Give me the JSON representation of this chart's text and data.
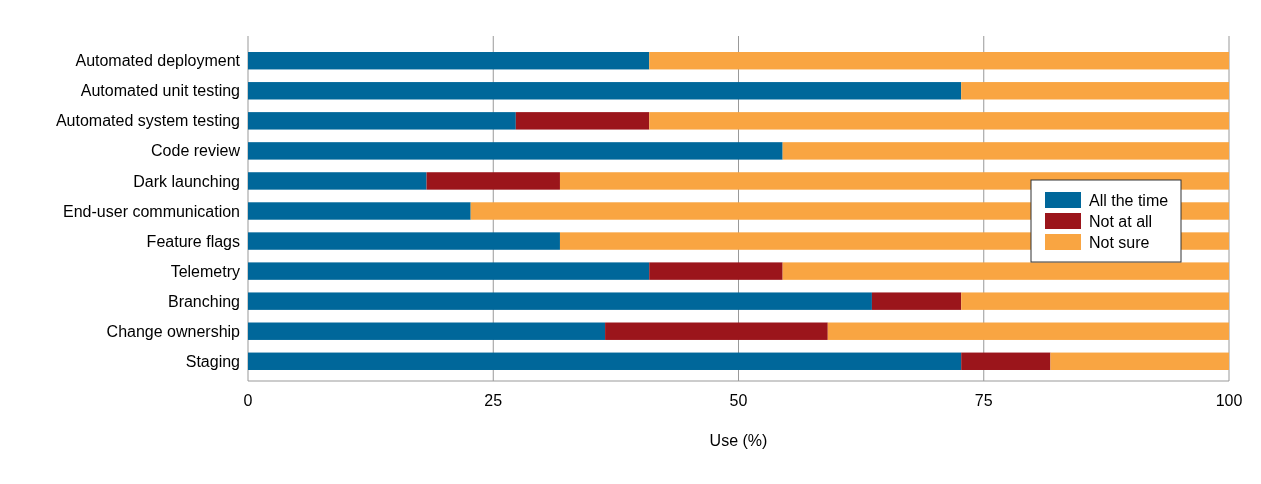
{
  "chart_data": {
    "type": "bar",
    "orientation": "horizontal",
    "stacked": true,
    "xlabel": "Use (%)",
    "categories": [
      "Automated deployment",
      "Automated unit testing",
      "Automated system testing",
      "Code review",
      "Dark launching",
      "End-user communication",
      "Feature flags",
      "Telemetry",
      "Branching",
      "Change ownership",
      "Staging"
    ],
    "series": [
      {
        "name": "All the time",
        "color": "#00679a",
        "values": [
          40.9,
          72.7,
          27.3,
          54.5,
          18.2,
          22.7,
          31.8,
          40.9,
          63.6,
          36.4,
          72.7
        ]
      },
      {
        "name": "Not at all",
        "color": "#9b151b",
        "values": [
          0,
          0,
          13.6,
          0,
          13.6,
          0,
          0,
          13.6,
          9.1,
          22.7,
          9.1
        ]
      },
      {
        "name": "Not sure",
        "color": "#f9a542",
        "values": [
          59.1,
          27.3,
          59.1,
          45.5,
          68.2,
          77.3,
          68.2,
          45.5,
          27.3,
          40.9,
          18.2
        ]
      }
    ],
    "xlim": [
      0,
      100
    ],
    "xticks": [
      0,
      25,
      50,
      75,
      100
    ],
    "grid": "x",
    "legend": "right"
  }
}
